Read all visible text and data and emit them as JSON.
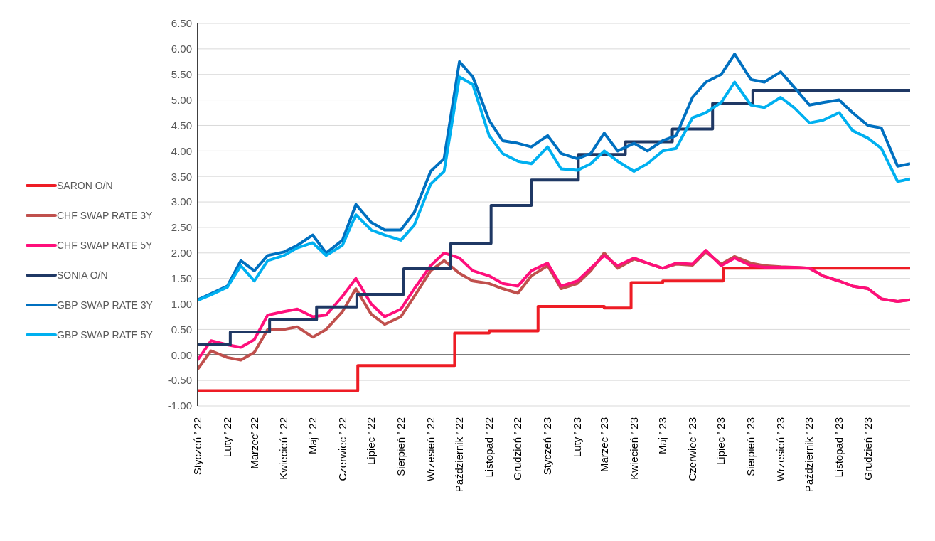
{
  "chart_data": {
    "type": "line",
    "x": [
      "2022-01-01",
      "2022-01-15",
      "2022-02-01",
      "2022-02-15",
      "2022-03-01",
      "2022-03-15",
      "2022-04-01",
      "2022-04-15",
      "2022-05-01",
      "2022-05-15",
      "2022-06-01",
      "2022-06-15",
      "2022-07-01",
      "2022-07-15",
      "2022-08-01",
      "2022-08-15",
      "2022-09-01",
      "2022-09-15",
      "2022-10-01",
      "2022-10-15",
      "2022-11-01",
      "2022-11-15",
      "2022-12-01",
      "2022-12-15",
      "2023-01-01",
      "2023-01-15",
      "2023-02-01",
      "2023-02-15",
      "2023-03-01",
      "2023-03-15",
      "2023-04-01",
      "2023-04-15",
      "2023-05-01",
      "2023-05-15",
      "2023-06-01",
      "2023-06-15",
      "2023-07-01",
      "2023-07-15",
      "2023-08-01",
      "2023-08-15",
      "2023-09-01",
      "2023-09-15",
      "2023-10-01",
      "2023-10-15",
      "2023-11-01",
      "2023-11-15",
      "2023-12-01",
      "2023-12-15",
      "2024-01-01",
      "2024-01-14"
    ],
    "series": [
      {
        "name": "SARON O/N",
        "type": "step",
        "color": "#ee1c25",
        "x": [
          "2022-01-01",
          "2022-06-17",
          "2022-09-26",
          "2022-11-01",
          "2022-12-22",
          "2023-03-01",
          "2023-03-29",
          "2023-05-01",
          "2023-07-03",
          "2024-01-14"
        ],
        "values": [
          -0.7,
          -0.21,
          0.43,
          0.47,
          0.95,
          0.92,
          1.42,
          1.45,
          1.7,
          1.7
        ]
      },
      {
        "name": "CHF SWAP RATE 3Y",
        "color": "#c0504d",
        "values": [
          -0.28,
          0.08,
          -0.05,
          -0.1,
          0.05,
          0.5,
          0.5,
          0.55,
          0.35,
          0.5,
          0.85,
          1.3,
          0.8,
          0.6,
          0.75,
          1.15,
          1.65,
          1.85,
          1.6,
          1.45,
          1.4,
          1.3,
          1.21,
          1.55,
          1.75,
          1.3,
          1.4,
          1.65,
          2.0,
          1.7,
          1.88,
          1.8,
          1.7,
          1.78,
          1.76,
          2.02,
          1.78,
          1.93,
          1.8,
          1.75,
          1.73,
          1.72,
          1.7,
          1.55,
          1.45,
          1.35,
          1.3,
          1.1,
          1.05,
          1.08
        ]
      },
      {
        "name": "CHF SWAP RATE 5Y",
        "color": "#ff0f7b",
        "values": [
          -0.1,
          0.28,
          0.2,
          0.15,
          0.3,
          0.78,
          0.85,
          0.9,
          0.75,
          0.78,
          1.15,
          1.5,
          1.0,
          0.75,
          0.9,
          1.3,
          1.75,
          2.0,
          1.9,
          1.65,
          1.55,
          1.4,
          1.35,
          1.65,
          1.8,
          1.35,
          1.45,
          1.7,
          1.95,
          1.75,
          1.9,
          1.8,
          1.7,
          1.8,
          1.78,
          2.05,
          1.75,
          1.9,
          1.75,
          1.72,
          1.72,
          1.72,
          1.7,
          1.55,
          1.45,
          1.35,
          1.3,
          1.1,
          1.05,
          1.08
        ]
      },
      {
        "name": "SONIA O/N",
        "type": "step",
        "color": "#1f3864",
        "x": [
          "2022-01-01",
          "2022-02-04",
          "2022-03-17",
          "2022-05-05",
          "2022-06-16",
          "2022-08-04",
          "2022-09-22",
          "2022-11-03",
          "2022-12-15",
          "2023-02-02",
          "2023-03-23",
          "2023-05-11",
          "2023-06-22",
          "2023-08-03",
          "2024-01-14"
        ],
        "values": [
          0.2,
          0.45,
          0.69,
          0.94,
          1.19,
          1.69,
          2.19,
          2.93,
          3.43,
          3.93,
          4.18,
          4.43,
          4.93,
          5.19,
          5.19
        ]
      },
      {
        "name": "GBP SWAP RATE 3Y",
        "color": "#0070c0",
        "values": [
          1.08,
          1.2,
          1.35,
          1.85,
          1.65,
          1.95,
          2.02,
          2.15,
          2.35,
          2.0,
          2.25,
          2.95,
          2.6,
          2.45,
          2.45,
          2.8,
          3.6,
          3.85,
          5.75,
          5.45,
          4.6,
          4.2,
          4.15,
          4.08,
          4.3,
          3.95,
          3.85,
          3.95,
          4.35,
          4.0,
          4.15,
          4.0,
          4.2,
          4.3,
          5.05,
          5.35,
          5.5,
          5.9,
          5.4,
          5.35,
          5.55,
          5.25,
          4.9,
          4.95,
          5.0,
          4.75,
          4.5,
          4.45,
          3.7,
          3.75
        ]
      },
      {
        "name": "GBP SWAP RATE 5Y",
        "color": "#00b0f0",
        "values": [
          1.07,
          1.18,
          1.33,
          1.75,
          1.45,
          1.85,
          1.95,
          2.1,
          2.2,
          1.95,
          2.15,
          2.75,
          2.45,
          2.35,
          2.25,
          2.55,
          3.35,
          3.6,
          5.45,
          5.3,
          4.3,
          3.95,
          3.8,
          3.75,
          4.08,
          3.65,
          3.62,
          3.75,
          4.0,
          3.8,
          3.6,
          3.75,
          4.0,
          4.05,
          4.65,
          4.75,
          4.95,
          5.35,
          4.9,
          4.85,
          5.05,
          4.85,
          4.55,
          4.6,
          4.75,
          4.4,
          4.25,
          4.05,
          3.4,
          3.45
        ]
      }
    ],
    "xlim": [
      "2022-01-01",
      "2024-01-14"
    ],
    "xticks": [
      {
        "value": "2022-01-01",
        "label": "Styczeń ’ 22"
      },
      {
        "value": "2022-02-01",
        "label": "Luty ’ 22"
      },
      {
        "value": "2022-03-01",
        "label": "Marzec’ 22"
      },
      {
        "value": "2022-04-01",
        "label": "Kwiecień ’ 22"
      },
      {
        "value": "2022-05-01",
        "label": "Maj ’ 22"
      },
      {
        "value": "2022-06-01",
        "label": "Czerwiec ’ 22"
      },
      {
        "value": "2022-07-01",
        "label": "Lipiec ’ 22"
      },
      {
        "value": "2022-08-01",
        "label": "Sierpień ’ 22"
      },
      {
        "value": "2022-09-01",
        "label": "Wrzesień ’ 22"
      },
      {
        "value": "2022-10-01",
        "label": "Październik ’ 22"
      },
      {
        "value": "2022-11-01",
        "label": "Listopad ’ 22"
      },
      {
        "value": "2022-12-01",
        "label": "Grudzień ’ 22"
      },
      {
        "value": "2023-01-01",
        "label": "Styczeń ’ 23"
      },
      {
        "value": "2023-02-01",
        "label": "Luty ’ 23"
      },
      {
        "value": "2023-03-01",
        "label": "Marzec ’ 23"
      },
      {
        "value": "2023-04-01",
        "label": "Kwiecień ’ 23"
      },
      {
        "value": "2023-05-01",
        "label": "Maj ’ 23"
      },
      {
        "value": "2023-06-01",
        "label": "Czerwiec ’ 23"
      },
      {
        "value": "2023-07-01",
        "label": "Lipiec ’ 23"
      },
      {
        "value": "2023-08-01",
        "label": "Sierpień ’ 23"
      },
      {
        "value": "2023-09-01",
        "label": "Wrzesień ’ 23"
      },
      {
        "value": "2023-10-01",
        "label": "Październik ’ 23"
      },
      {
        "value": "2023-11-01",
        "label": "Listopad ’ 23"
      },
      {
        "value": "2023-12-01",
        "label": "Grudzień ’ 23"
      }
    ],
    "ylim": [
      -1.0,
      6.5
    ],
    "yticks": [
      {
        "value": -1.0,
        "label": "-1.00"
      },
      {
        "value": -0.5,
        "label": "-0.50"
      },
      {
        "value": 0,
        "label": "0.00"
      },
      {
        "value": 0.5,
        "label": "0.50"
      },
      {
        "value": 1.0,
        "label": "1.00"
      },
      {
        "value": 1.5,
        "label": "1.50"
      },
      {
        "value": 2.0,
        "label": "2.00"
      },
      {
        "value": 2.5,
        "label": "2.50"
      },
      {
        "value": 3.0,
        "label": "3.00"
      },
      {
        "value": 3.5,
        "label": "3.50"
      },
      {
        "value": 4.0,
        "label": "4.00"
      },
      {
        "value": 4.5,
        "label": "4.50"
      },
      {
        "value": 5.0,
        "label": "5.00"
      },
      {
        "value": 5.5,
        "label": "5.50"
      },
      {
        "value": 6.0,
        "label": "6.00"
      },
      {
        "value": 6.5,
        "label": "6.50"
      }
    ],
    "ref_lines": [
      {
        "axis": "y",
        "value": 0,
        "color": "#000000"
      }
    ],
    "grid": "y",
    "legend": "left",
    "marker": "none",
    "line_style": "solid"
  }
}
